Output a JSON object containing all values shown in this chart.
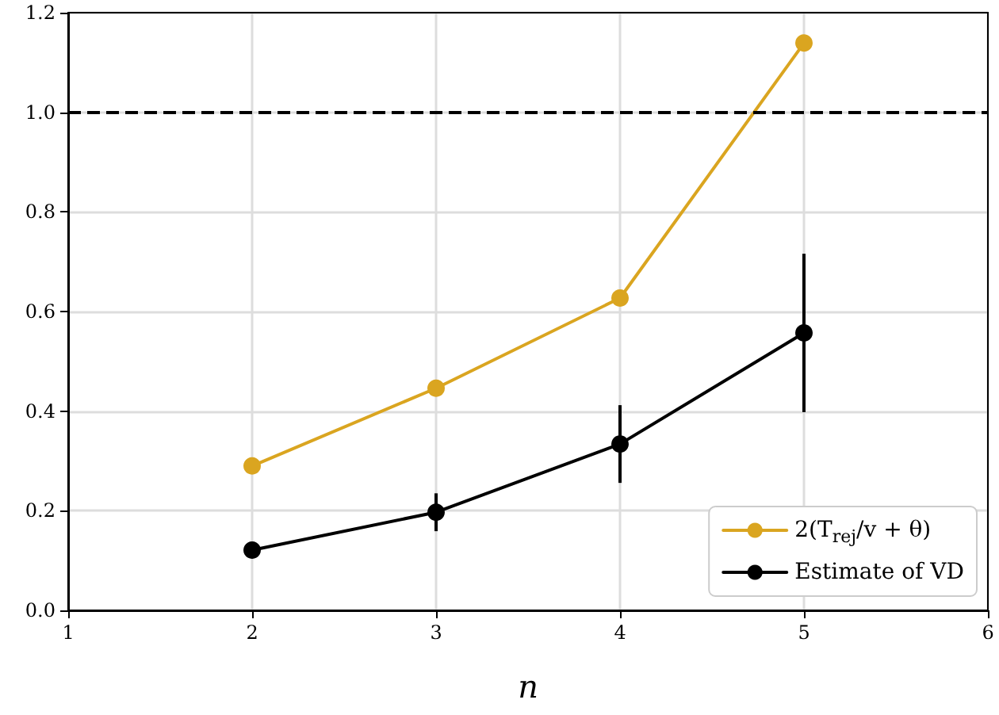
{
  "chart_data": {
    "type": "line",
    "xlabel": "n",
    "x": [
      2,
      3,
      4,
      5
    ],
    "series": [
      {
        "name": "2(T$_{rej}$/v + θ)",
        "color": "#daa520",
        "values": [
          0.29,
          0.446,
          0.627,
          1.139
        ]
      },
      {
        "name": "Estimate of VD",
        "color": "#000000",
        "values": [
          0.121,
          0.197,
          0.334,
          0.557
        ],
        "errors": [
          null,
          0.038,
          0.078,
          0.159
        ]
      }
    ],
    "xlim": [
      1,
      6
    ],
    "xticks": [
      1,
      2,
      3,
      4,
      5,
      6
    ],
    "ylim": [
      0,
      1.2
    ],
    "yticks": [
      {
        "value": 0,
        "label": "0.0"
      },
      0.2,
      0.4,
      0.6,
      0.8,
      {
        "value": 1,
        "label": "1.0"
      },
      1.2
    ],
    "grid": true,
    "legend": "bottom right",
    "marker": "circle",
    "line_style": "solid",
    "ref_lines": [
      {
        "axis": "y",
        "value": 1.0,
        "label": null,
        "color": "#000000",
        "line_style": "dashed"
      }
    ]
  }
}
